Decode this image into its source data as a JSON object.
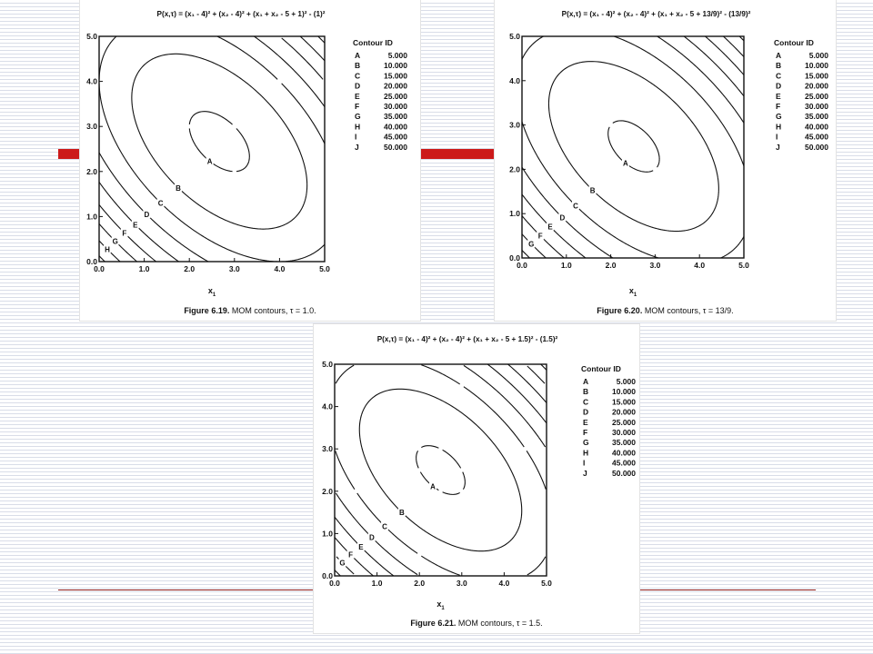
{
  "slide": {
    "accent_color": "#cc1a1a",
    "rule_color": "#8b1c1c",
    "stripe_color": "#d9dde8"
  },
  "chart_data": [
    {
      "type": "contour",
      "equation": "P(x,τ) = (x₁ - 4)² + (x₂ - 4)² + (x₁ + x₂ - 5 + 1)² - (1)²",
      "caption_label": "Figure 6.19.",
      "caption_text": "MOM contours, τ = 1.0.",
      "xlabel": "x",
      "xlabel_sub": "1",
      "xlim": [
        0,
        5
      ],
      "ylim": [
        0,
        5
      ],
      "ticks": [
        "0.0",
        "1.0",
        "2.0",
        "3.0",
        "4.0",
        "5.0"
      ],
      "legend_title": "Contour ID",
      "levels": [
        {
          "id": "A",
          "value": "5.000"
        },
        {
          "id": "B",
          "value": "10.000"
        },
        {
          "id": "C",
          "value": "15.000"
        },
        {
          "id": "D",
          "value": "20.000"
        },
        {
          "id": "E",
          "value": "25.000"
        },
        {
          "id": "F",
          "value": "30.000"
        },
        {
          "id": "G",
          "value": "35.000"
        },
        {
          "id": "H",
          "value": "40.000"
        },
        {
          "id": "I",
          "value": "45.000"
        },
        {
          "id": "J",
          "value": "50.000"
        }
      ]
    },
    {
      "type": "contour",
      "equation": "P(x,τ) = (x₁ - 4)² + (x₂ - 4)² + (x₁ + x₂ - 5 + 13/9)² - (13/9)²",
      "caption_label": "Figure 6.20.",
      "caption_text": "MOM contours, τ = 13/9.",
      "xlabel": "x",
      "xlabel_sub": "1",
      "xlim": [
        0,
        5
      ],
      "ylim": [
        0,
        5
      ],
      "ticks": [
        "0.0",
        "1.0",
        "2.0",
        "3.0",
        "4.0",
        "5.0"
      ],
      "legend_title": "Contour ID",
      "levels": [
        {
          "id": "A",
          "value": "5.000"
        },
        {
          "id": "B",
          "value": "10.000"
        },
        {
          "id": "C",
          "value": "15.000"
        },
        {
          "id": "D",
          "value": "20.000"
        },
        {
          "id": "E",
          "value": "25.000"
        },
        {
          "id": "F",
          "value": "30.000"
        },
        {
          "id": "G",
          "value": "35.000"
        },
        {
          "id": "H",
          "value": "40.000"
        },
        {
          "id": "I",
          "value": "45.000"
        },
        {
          "id": "J",
          "value": "50.000"
        }
      ]
    },
    {
      "type": "contour",
      "equation": "P(x,τ) = (x₁ - 4)² + (x₂ - 4)² + (x₁ + x₂ - 5 + 1.5)² - (1.5)²",
      "caption_label": "Figure 6.21.",
      "caption_text": "MOM contours, τ = 1.5.",
      "xlabel": "x",
      "xlabel_sub": "1",
      "xlim": [
        0,
        5
      ],
      "ylim": [
        0,
        5
      ],
      "ticks": [
        "0.0",
        "1.0",
        "2.0",
        "3.0",
        "4.0",
        "5.0"
      ],
      "legend_title": "Contour ID",
      "levels": [
        {
          "id": "A",
          "value": "5.000"
        },
        {
          "id": "B",
          "value": "10.000"
        },
        {
          "id": "C",
          "value": "15.000"
        },
        {
          "id": "D",
          "value": "20.000"
        },
        {
          "id": "E",
          "value": "25.000"
        },
        {
          "id": "F",
          "value": "30.000"
        },
        {
          "id": "G",
          "value": "35.000"
        },
        {
          "id": "H",
          "value": "40.000"
        },
        {
          "id": "I",
          "value": "45.000"
        },
        {
          "id": "J",
          "value": "50.000"
        }
      ]
    }
  ]
}
